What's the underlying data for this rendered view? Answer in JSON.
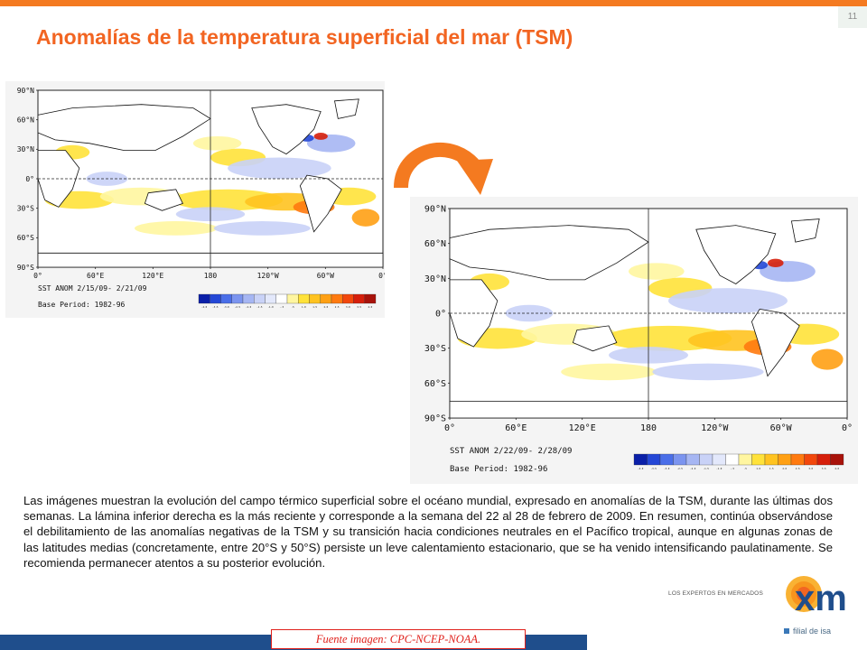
{
  "page_number": "11",
  "title": "Anomalías de la temperatura superficial del mar (TSM)",
  "maps": [
    {
      "lat_labels": [
        "90°N",
        "60°N",
        "30°N",
        "0°",
        "30°S",
        "60°S",
        "90°S"
      ],
      "lon_labels": [
        "0°",
        "60°E",
        "120°E",
        "180",
        "120°W",
        "60°W",
        "0°"
      ],
      "caption_period": "SST ANOM  2/15/09- 2/21/09",
      "caption_base": "Base Period: 1982-96"
    },
    {
      "lat_labels": [
        "90°N",
        "60°N",
        "30°N",
        "0°",
        "30°S",
        "60°S",
        "90°S"
      ],
      "lon_labels": [
        "0°",
        "60°E",
        "120°E",
        "180",
        "120°W",
        "60°W",
        "0°"
      ],
      "caption_period": "SST ANOM  2/22/09- 2/28/09",
      "caption_base": "Base Period: 1982-96"
    }
  ],
  "colorbar": {
    "colors": [
      "#0a1fa8",
      "#2447d6",
      "#4a6ee8",
      "#7b94ef",
      "#a6b6f3",
      "#c9d2f7",
      "#e3e8fb",
      "#ffffff",
      "#fff6a0",
      "#ffe23a",
      "#ffc320",
      "#ffa014",
      "#ff7a0f",
      "#f2470c",
      "#d61f0b",
      "#a8120a"
    ],
    "tick_labels": [
      "-4.0",
      "-3.5",
      "-3.0",
      "-2.5",
      "-2.0",
      "-1.5",
      "-1.0",
      "-.5",
      ".5",
      "1.0",
      "1.5",
      "2.0",
      "2.5",
      "3.0",
      "3.5",
      "4.0"
    ]
  },
  "body_text": "Las imágenes muestran la evolución del campo térmico superficial sobre el océano mundial, expresado en anomalías de la TSM, durante las últimas dos semanas.  La lámina inferior derecha es la más reciente y corresponde a la semana del 22 al 28 de febrero de 2009.  En resumen, continúa observándose el debilitamiento de las anomalías negativas de la TSM y su transición hacia condiciones neutrales en el Pacífico tropical, aunque en algunas zonas de las latitudes medias (concretamente, entre 20°S y 50°S) persiste un leve calentamiento estacionario, que se ha venido intensificando paulatinamente.  Se recomienda permanecer atentos a su posterior evolución.",
  "logo": {
    "tagline": "LOS EXPERTOS EN MERCADOS",
    "brand": "xm",
    "subline": "filial de isa"
  },
  "source": "Fuente imagen: CPC-NCEP-NOAA.",
  "theme": {
    "accent": "#f26522",
    "brand_blue": "#1f4e8c",
    "source_red": "#e0201b"
  }
}
